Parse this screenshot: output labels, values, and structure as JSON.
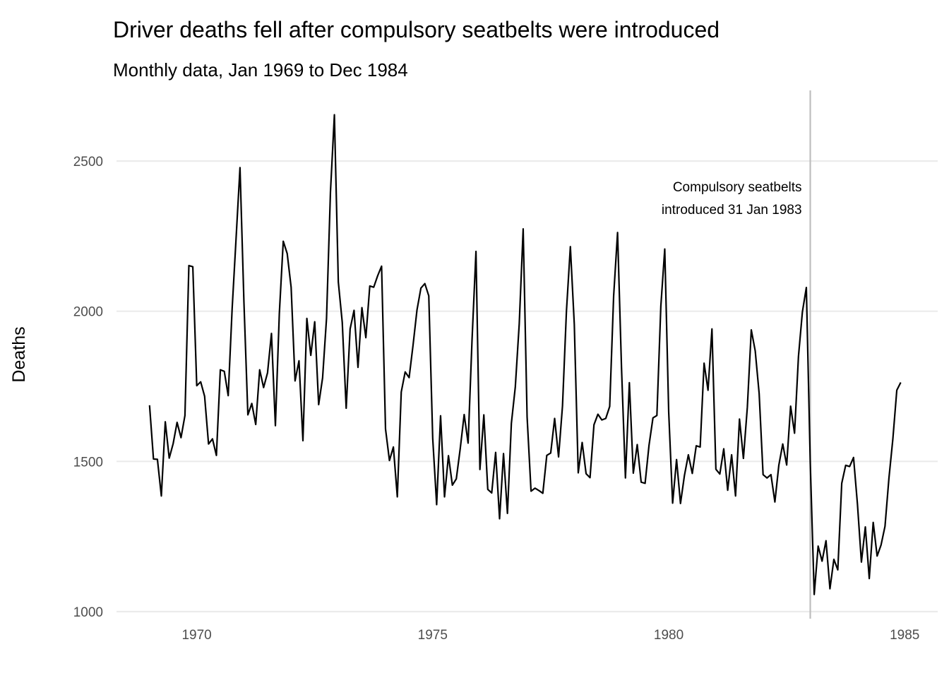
{
  "chart_data": {
    "type": "line",
    "title": "Driver deaths fell after compulsory seatbelts were introduced",
    "subtitle": "Monthly data, Jan 1969 to Dec 1984",
    "xlabel": "",
    "ylabel": "Deaths",
    "xlim": [
      1968.3,
      1985.7
    ],
    "ylim": [
      1000,
      2750
    ],
    "xticks": [
      1970,
      1975,
      1980,
      1985
    ],
    "xtick_labels": [
      "1970",
      "1975",
      "1980",
      "1985"
    ],
    "yticks": [
      1000,
      1500,
      2000,
      2500
    ],
    "ytick_labels": [
      "1000",
      "1500",
      "2000",
      "2500"
    ],
    "grid": "horizontal",
    "legend": "none",
    "annotation": {
      "lines": [
        "Compulsory seatbelts",
        "introduced 31 Jan 1983"
      ],
      "x": 1983.0,
      "y_lines": [
        2415,
        2340
      ]
    },
    "vline": {
      "x": 1983.0,
      "color": "#bebebe"
    },
    "series": [
      {
        "x_start": 1969.0,
        "x_step": 0.08333333,
        "values": [
          1687,
          1508,
          1507,
          1385,
          1632,
          1511,
          1559,
          1630,
          1579,
          1653,
          2152,
          2148,
          1752,
          1765,
          1717,
          1558,
          1575,
          1520,
          1805,
          1800,
          1719,
          2008,
          2242,
          2478,
          2030,
          1655,
          1693,
          1623,
          1805,
          1746,
          1795,
          1926,
          1619,
          1992,
          2233,
          2192,
          2080,
          1768,
          1835,
          1569,
          1976,
          1853,
          1965,
          1689,
          1778,
          1976,
          2397,
          2654,
          2097,
          1963,
          1677,
          1941,
          2003,
          1813,
          2012,
          1912,
          2084,
          2080,
          2118,
          2150,
          1608,
          1503,
          1548,
          1382,
          1731,
          1798,
          1779,
          1887,
          2004,
          2077,
          2092,
          2051,
          1577,
          1356,
          1652,
          1382,
          1519,
          1421,
          1442,
          1543,
          1656,
          1561,
          1905,
          2199,
          1473,
          1655,
          1407,
          1395,
          1530,
          1309,
          1526,
          1327,
          1627,
          1748,
          1958,
          2274,
          1648,
          1401,
          1411,
          1403,
          1394,
          1520,
          1528,
          1643,
          1515,
          1685,
          2000,
          2215,
          1956,
          1462,
          1563,
          1459,
          1446,
          1622,
          1657,
          1638,
          1643,
          1683,
          2050,
          2262,
          1813,
          1445,
          1762,
          1461,
          1556,
          1431,
          1427,
          1554,
          1645,
          1653,
          2016,
          2207,
          1665,
          1361,
          1506,
          1360,
          1453,
          1522,
          1460,
          1552,
          1548,
          1827,
          1737,
          1941,
          1474,
          1458,
          1542,
          1404,
          1522,
          1385,
          1641,
          1510,
          1681,
          1938,
          1868,
          1726,
          1456,
          1445,
          1456,
          1365,
          1487,
          1558,
          1488,
          1684,
          1594,
          1850,
          1998,
          2079,
          1494,
          1057,
          1218,
          1168,
          1236,
          1076,
          1174,
          1139,
          1427,
          1487,
          1483,
          1513,
          1357,
          1165,
          1282,
          1110,
          1297,
          1185,
          1222,
          1284,
          1444,
          1575,
          1737,
          1763
        ]
      }
    ]
  }
}
